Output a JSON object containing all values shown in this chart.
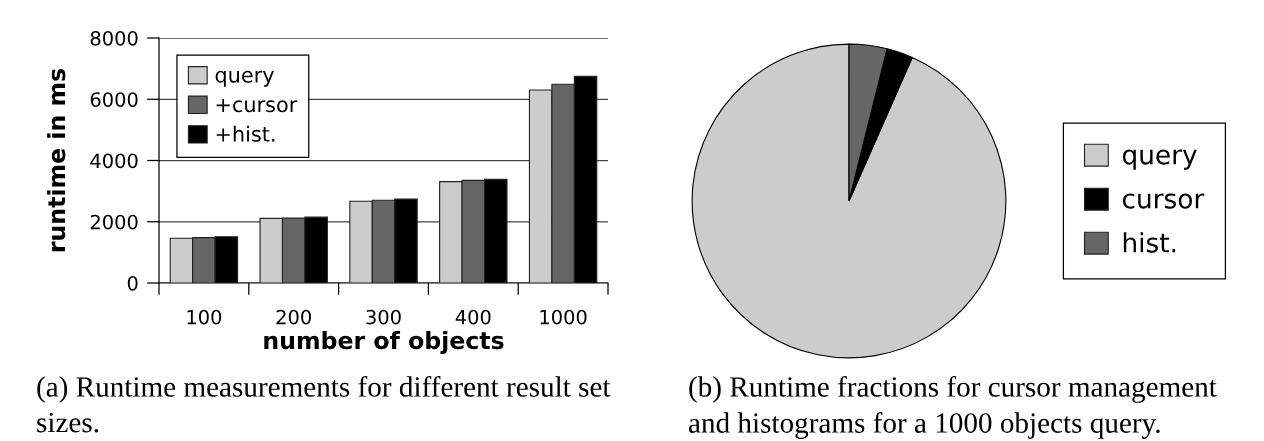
{
  "chart_data": [
    {
      "type": "bar",
      "xlabel": "number of objects",
      "ylabel": "runtime in ms",
      "categories": [
        "100",
        "200",
        "300",
        "400",
        "1000"
      ],
      "series": [
        {
          "name": "query",
          "color": "#cccccc",
          "values": [
            1460,
            2110,
            2670,
            3310,
            6300
          ]
        },
        {
          "name": "+cursor",
          "color": "#666666",
          "values": [
            1480,
            2120,
            2700,
            3350,
            6490
          ]
        },
        {
          "name": "+hist.",
          "color": "#000000",
          "values": [
            1510,
            2150,
            2740,
            3390,
            6750
          ]
        }
      ],
      "ylim": [
        0,
        8000
      ],
      "yticks": [
        0,
        2000,
        4000,
        6000,
        8000
      ],
      "grid": "y",
      "legend": "top left",
      "annotations": [
        "(a) Runtime measurements for different result set sizes."
      ]
    },
    {
      "type": "pie",
      "categories": [
        "query",
        "cursor",
        "hist."
      ],
      "values": [
        93.4,
        2.7,
        3.9
      ],
      "colors": [
        "#cccccc",
        "#000000",
        "#666666"
      ],
      "legend": "right",
      "annotations": [
        "(b) Runtime fractions for cursor management and histograms for a 1000 objects query."
      ]
    }
  ]
}
